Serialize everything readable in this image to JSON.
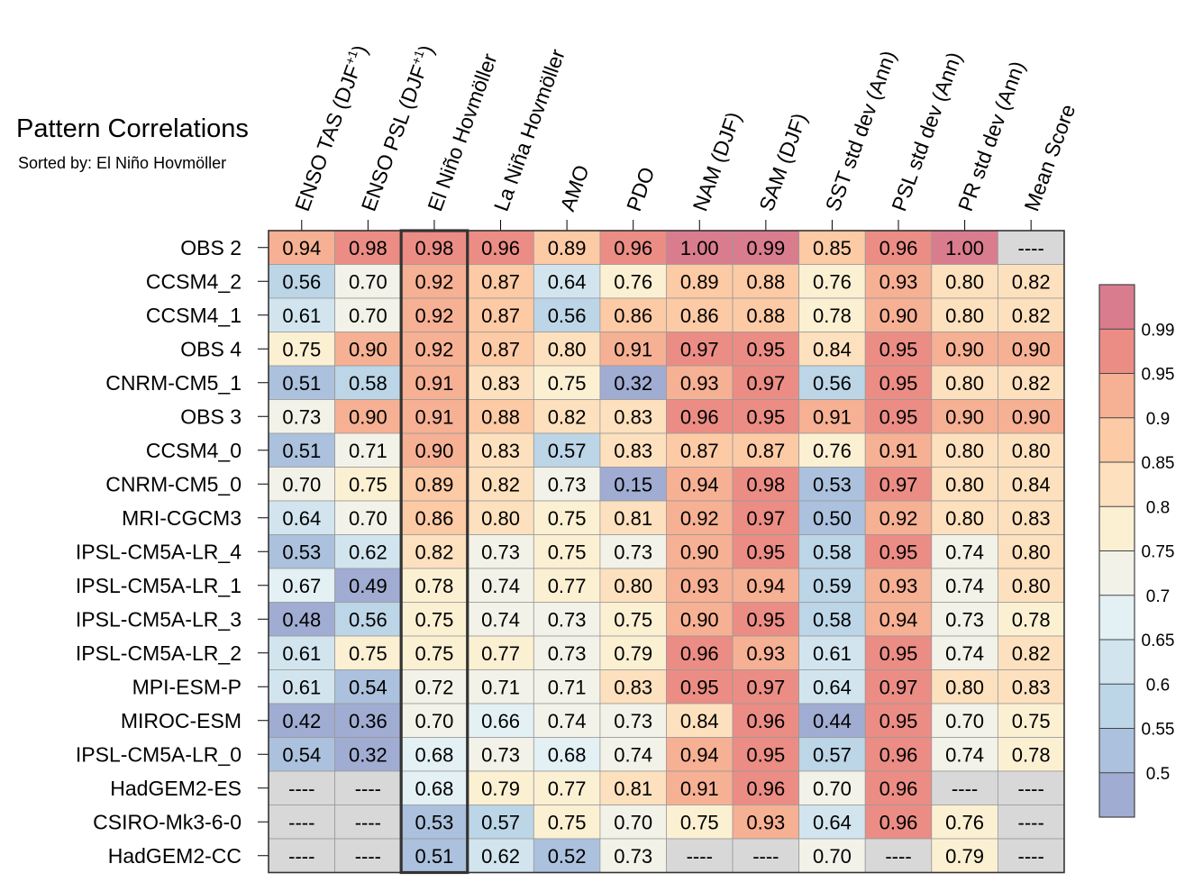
{
  "chart_data": {
    "type": "heatmap",
    "title": "Pattern Correlations",
    "subtitle": "Sorted by: El Niño Hovmöller",
    "highlight_column": "El Niño Hovmöller",
    "missing_label": "----",
    "columns": [
      "ENSO TAS (DJF+1)",
      "ENSO PSL (DJF+1)",
      "El Niño Hovmöller",
      "La Niña Hovmöller",
      "AMO",
      "PDO",
      "NAM (DJF)",
      "SAM (DJF)",
      "SST std dev (Ann)",
      "PSL std dev (Ann)",
      "PR std dev (Ann)",
      "Mean Score"
    ],
    "rows": [
      {
        "name": "OBS 2",
        "values": [
          0.94,
          0.98,
          0.98,
          0.96,
          0.89,
          0.96,
          1.0,
          0.99,
          0.85,
          0.96,
          1.0,
          null
        ]
      },
      {
        "name": "CCSM4_2",
        "values": [
          0.56,
          0.7,
          0.92,
          0.87,
          0.64,
          0.76,
          0.89,
          0.88,
          0.76,
          0.93,
          0.8,
          0.82
        ]
      },
      {
        "name": "CCSM4_1",
        "values": [
          0.61,
          0.7,
          0.92,
          0.87,
          0.56,
          0.86,
          0.86,
          0.88,
          0.78,
          0.9,
          0.8,
          0.82
        ]
      },
      {
        "name": "OBS 4",
        "values": [
          0.75,
          0.9,
          0.92,
          0.87,
          0.8,
          0.91,
          0.97,
          0.95,
          0.84,
          0.95,
          0.9,
          0.9
        ]
      },
      {
        "name": "CNRM-CM5_1",
        "values": [
          0.51,
          0.58,
          0.91,
          0.83,
          0.75,
          0.32,
          0.93,
          0.97,
          0.56,
          0.95,
          0.8,
          0.82
        ]
      },
      {
        "name": "OBS 3",
        "values": [
          0.73,
          0.9,
          0.91,
          0.88,
          0.82,
          0.83,
          0.96,
          0.95,
          0.91,
          0.95,
          0.9,
          0.9
        ]
      },
      {
        "name": "CCSM4_0",
        "values": [
          0.51,
          0.71,
          0.9,
          0.83,
          0.57,
          0.83,
          0.87,
          0.87,
          0.76,
          0.91,
          0.8,
          0.8
        ]
      },
      {
        "name": "CNRM-CM5_0",
        "values": [
          0.7,
          0.75,
          0.89,
          0.82,
          0.73,
          0.15,
          0.94,
          0.98,
          0.53,
          0.97,
          0.8,
          0.84
        ]
      },
      {
        "name": "MRI-CGCM3",
        "values": [
          0.64,
          0.7,
          0.86,
          0.8,
          0.75,
          0.81,
          0.92,
          0.97,
          0.5,
          0.92,
          0.8,
          0.83
        ]
      },
      {
        "name": "IPSL-CM5A-LR_4",
        "values": [
          0.53,
          0.62,
          0.82,
          0.73,
          0.75,
          0.73,
          0.9,
          0.95,
          0.58,
          0.95,
          0.74,
          0.8
        ]
      },
      {
        "name": "IPSL-CM5A-LR_1",
        "values": [
          0.67,
          0.49,
          0.78,
          0.74,
          0.77,
          0.8,
          0.93,
          0.94,
          0.59,
          0.93,
          0.74,
          0.8
        ]
      },
      {
        "name": "IPSL-CM5A-LR_3",
        "values": [
          0.48,
          0.56,
          0.75,
          0.74,
          0.73,
          0.75,
          0.9,
          0.95,
          0.58,
          0.94,
          0.73,
          0.78
        ]
      },
      {
        "name": "IPSL-CM5A-LR_2",
        "values": [
          0.61,
          0.75,
          0.75,
          0.77,
          0.73,
          0.79,
          0.96,
          0.93,
          0.61,
          0.95,
          0.74,
          0.82
        ]
      },
      {
        "name": "MPI-ESM-P",
        "values": [
          0.61,
          0.54,
          0.72,
          0.71,
          0.71,
          0.83,
          0.95,
          0.97,
          0.64,
          0.97,
          0.8,
          0.83
        ]
      },
      {
        "name": "MIROC-ESM",
        "values": [
          0.42,
          0.36,
          0.7,
          0.66,
          0.74,
          0.73,
          0.84,
          0.96,
          0.44,
          0.95,
          0.7,
          0.75
        ]
      },
      {
        "name": "IPSL-CM5A-LR_0",
        "values": [
          0.54,
          0.32,
          0.68,
          0.73,
          0.68,
          0.74,
          0.94,
          0.95,
          0.57,
          0.96,
          0.74,
          0.78
        ]
      },
      {
        "name": "HadGEM2-ES",
        "values": [
          null,
          null,
          0.68,
          0.79,
          0.77,
          0.81,
          0.91,
          0.96,
          0.7,
          0.96,
          null,
          null
        ]
      },
      {
        "name": "CSIRO-Mk3-6-0",
        "values": [
          null,
          null,
          0.53,
          0.57,
          0.75,
          0.7,
          0.75,
          0.93,
          0.64,
          0.96,
          0.76,
          null
        ]
      },
      {
        "name": "HadGEM2-CC",
        "values": [
          null,
          null,
          0.51,
          0.62,
          0.52,
          0.73,
          null,
          null,
          0.7,
          null,
          0.79,
          null
        ]
      }
    ],
    "colorbar": {
      "levels": [
        0.5,
        0.55,
        0.6,
        0.65,
        0.7,
        0.75,
        0.8,
        0.85,
        0.9,
        0.95,
        0.99
      ],
      "tick_labels": [
        "0.5",
        "0.55",
        "0.6",
        "0.65",
        "0.7",
        "0.75",
        "0.8",
        "0.85",
        "0.9",
        "0.95",
        "0.99"
      ],
      "colors": [
        "#a1acd2",
        "#abc1dd",
        "#bcd5e7",
        "#d2e5ef",
        "#e3f0f4",
        "#f3f2e8",
        "#fcf0d3",
        "#fde0bd",
        "#fccaa5",
        "#f6b093",
        "#eb8d85",
        "#d97d8e"
      ],
      "missing_color": "#d8d8d8"
    }
  }
}
